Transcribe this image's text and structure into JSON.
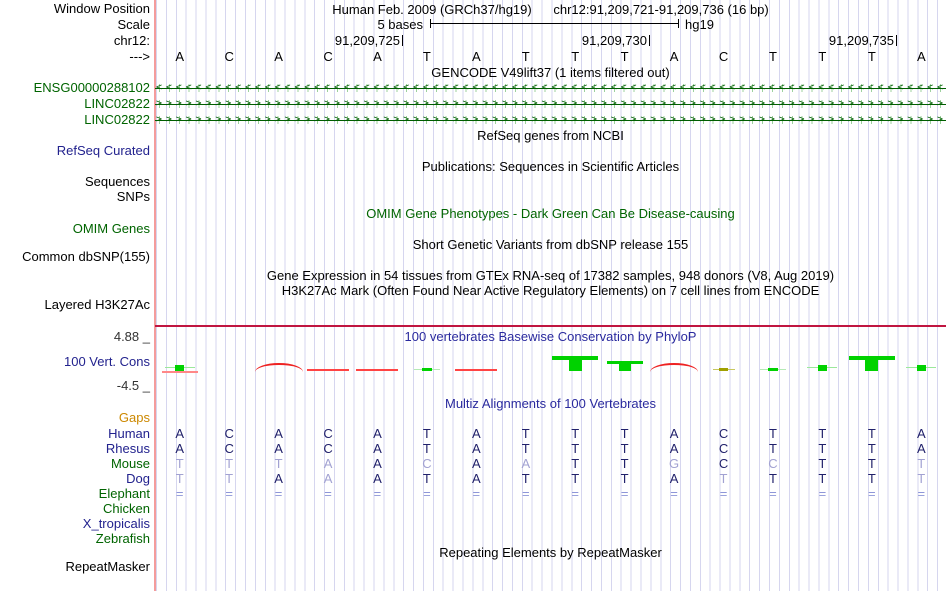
{
  "header": {
    "assembly_title": "Human Feb. 2009 (GRCh37/hg19)",
    "position_title": "chr12:91,209,721-91,209,736 (16 bp)",
    "window_position_label": "Window Position",
    "scale_label": "Scale",
    "scale_text": "5 bases",
    "scale_assembly": "hg19",
    "chrom_label": "chr12:",
    "strand_label": "--->",
    "ruler_ticks": [
      {
        "text": "91,209,725"
      },
      {
        "text": "91,209,730"
      },
      {
        "text": "91,209,735"
      }
    ],
    "sequence": "ACACATATTTACTTTA"
  },
  "tracks": {
    "gencode": {
      "title": "GENCODE V49lift37 (1 items filtered out)",
      "items": [
        {
          "label": "ENSG00000288102",
          "direction": "left"
        },
        {
          "label": "LINC02822",
          "direction": "right"
        },
        {
          "label": "LINC02822",
          "direction": "right"
        }
      ]
    },
    "refseq": {
      "title": "RefSeq genes from NCBI",
      "label": "RefSeq Curated"
    },
    "publications": {
      "title": "Publications: Sequences in Scientific Articles",
      "label_sequences": "Sequences",
      "label_snps": "SNPs"
    },
    "omim": {
      "title": "OMIM Gene Phenotypes - Dark Green Can Be Disease-causing",
      "label": "OMIM Genes"
    },
    "dbsnp": {
      "title": "Short Genetic Variants from dbSNP release 155",
      "label": "Common dbSNP(155)"
    },
    "gtex": {
      "title": "Gene Expression in 54 tissues from GTEx RNA-seq of 17382 samples, 948 donors (V8, Aug 2019)"
    },
    "h3k27ac": {
      "title": "H3K27Ac Mark (Often Found Near Active Regulatory Elements) on 7 cell lines from ENCODE",
      "label": "Layered H3K27Ac"
    },
    "conservation": {
      "title": "100 vertebrates Basewise Conservation by PhyloP",
      "label": "100 Vert. Cons",
      "max_label": "4.88 _",
      "min_label": "-4.5 _",
      "marks": [
        {
          "col": 1,
          "type": "green_block",
          "red_under": true
        },
        {
          "col": 3,
          "type": "red_hump"
        },
        {
          "col": 4,
          "type": "red_line"
        },
        {
          "col": 5,
          "type": "red_line"
        },
        {
          "col": 6,
          "type": "green_tick"
        },
        {
          "col": 7,
          "type": "red_line"
        },
        {
          "col": 9,
          "type": "green_T"
        },
        {
          "col": 10,
          "type": "green_block_capped"
        },
        {
          "col": 11,
          "type": "red_hump"
        },
        {
          "col": 12,
          "type": "olive_mark"
        },
        {
          "col": 13,
          "type": "green_tick"
        },
        {
          "col": 14,
          "type": "green_block",
          "red_under": false
        },
        {
          "col": 15,
          "type": "green_T"
        },
        {
          "col": 16,
          "type": "green_block",
          "red_under": false
        }
      ]
    },
    "multiz": {
      "title": "Multiz Alignments of 100 Vertebrates",
      "gaps_label": "Gaps",
      "species": [
        {
          "name": "Human",
          "letters": "ACACATATTTACTTTA",
          "faded": [],
          "label_color": "navy"
        },
        {
          "name": "Rhesus",
          "letters": "ACACATATTTACTTTA",
          "faded": [],
          "label_color": "navy"
        },
        {
          "name": "Mouse",
          "letters": "TTTAACAATTGCCTTT",
          "faded": [
            0,
            1,
            2,
            3,
            5,
            7,
            10,
            12,
            15
          ],
          "label_color": "green"
        },
        {
          "name": "Dog",
          "letters": "TTAAATATTTATTTTT",
          "faded": [
            0,
            1,
            3,
            11,
            15
          ],
          "label_color": "navy"
        },
        {
          "name": "Elephant",
          "letters": "================",
          "faded": [],
          "label_color": "green"
        },
        {
          "name": "Chicken",
          "letters": "",
          "faded": [],
          "label_color": "green"
        },
        {
          "name": "X_tropicalis",
          "letters": "",
          "faded": [],
          "label_color": "navy"
        },
        {
          "name": "Zebrafish",
          "letters": "",
          "faded": [],
          "label_color": "green"
        }
      ]
    },
    "repeatmasker": {
      "title": "Repeating Elements by RepeatMasker",
      "label": "RepeatMasker"
    }
  },
  "colors": {
    "track_green": "#006400",
    "label_navy": "#22228e",
    "gaps_orange": "#cc8800",
    "title_blue": "#2a2a9e",
    "letter_dark": "#21216b",
    "letter_faded": "#a2a2d2",
    "equals_blue": "#8e96d8",
    "cons_green": "#00d200",
    "cons_red": "#ff4444",
    "h3k27_line": "#c01540",
    "grid_line": "#d6d6ef",
    "left_guide_pink": "#f49c9c",
    "arrow_green": "#005e00"
  }
}
